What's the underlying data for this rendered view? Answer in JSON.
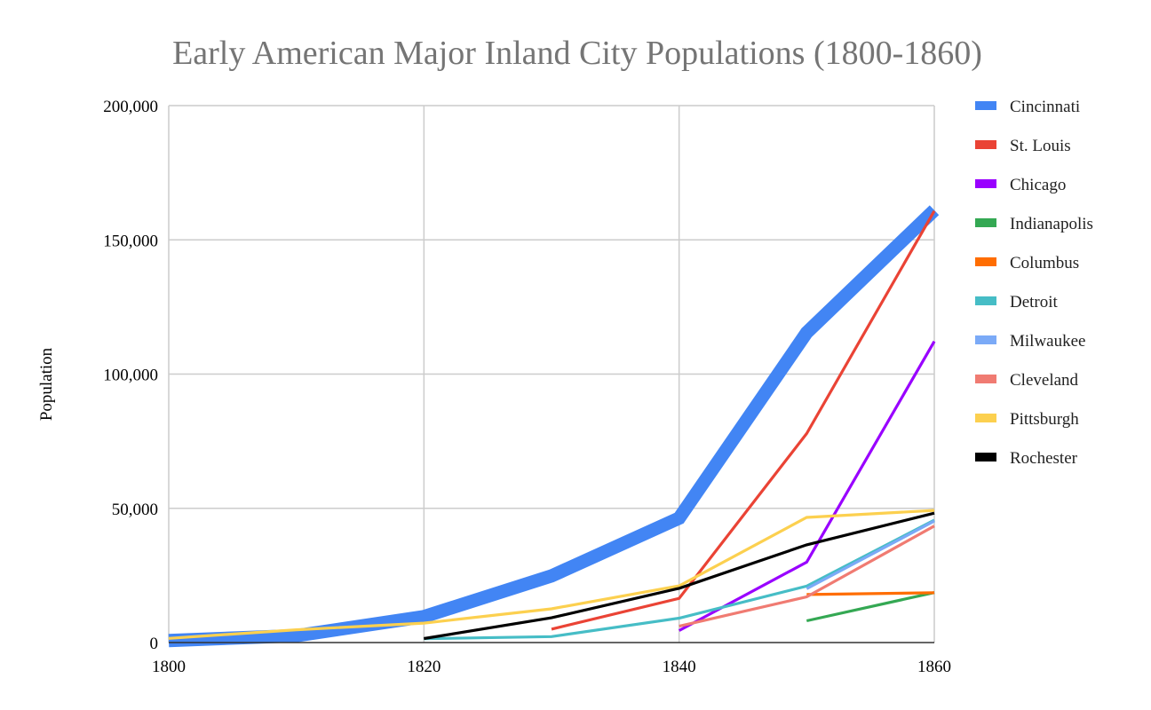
{
  "chart_data": {
    "type": "line",
    "title": "Early American Major Inland City Populations (1800-1860)",
    "xlabel": "",
    "ylabel": "Population",
    "x": [
      1800,
      1810,
      1820,
      1830,
      1840,
      1850,
      1860
    ],
    "xlim": [
      1800,
      1860
    ],
    "ylim": [
      0,
      200000
    ],
    "x_ticks": [
      "1800",
      "1820",
      "1840",
      "1860"
    ],
    "x_tick_values": [
      1800,
      1820,
      1840,
      1860
    ],
    "y_ticks": [
      "0",
      "50,000",
      "100,000",
      "150,000",
      "200,000"
    ],
    "y_tick_values": [
      0,
      50000,
      100000,
      150000,
      200000
    ],
    "grid": true,
    "legend_position": "right",
    "series": [
      {
        "name": "Cincinnati",
        "color": "#4285F4",
        "emphasis": "thick",
        "values": [
          750,
          2540,
          9642,
          24831,
          46338,
          115435,
          161044
        ]
      },
      {
        "name": "St. Louis",
        "color": "#EA4335",
        "values": [
          null,
          null,
          null,
          4977,
          16469,
          77860,
          160773
        ]
      },
      {
        "name": "Chicago",
        "color": "#9900FF",
        "values": [
          null,
          null,
          null,
          null,
          4470,
          29963,
          112172
        ]
      },
      {
        "name": "Indianapolis",
        "color": "#34A853",
        "values": [
          null,
          null,
          null,
          null,
          null,
          8091,
          18611
        ]
      },
      {
        "name": "Columbus",
        "color": "#FF6D01",
        "values": [
          null,
          null,
          null,
          null,
          null,
          17882,
          18554
        ]
      },
      {
        "name": "Detroit",
        "color": "#46BDC6",
        "values": [
          null,
          null,
          1422,
          2222,
          9102,
          21019,
          45619
        ]
      },
      {
        "name": "Milwaukee",
        "color": "#7BAAF7",
        "values": [
          null,
          null,
          null,
          null,
          null,
          20061,
          45246
        ]
      },
      {
        "name": "Cleveland",
        "color": "#F07B72",
        "values": [
          null,
          null,
          null,
          null,
          6071,
          17034,
          43417
        ]
      },
      {
        "name": "Pittsburgh",
        "color": "#FCD04F",
        "values": [
          1565,
          4768,
          7248,
          12568,
          21115,
          46601,
          49221
        ]
      },
      {
        "name": "Rochester",
        "color": "#000000",
        "values": [
          null,
          null,
          1502,
          9207,
          20191,
          36403,
          48204
        ]
      }
    ]
  }
}
